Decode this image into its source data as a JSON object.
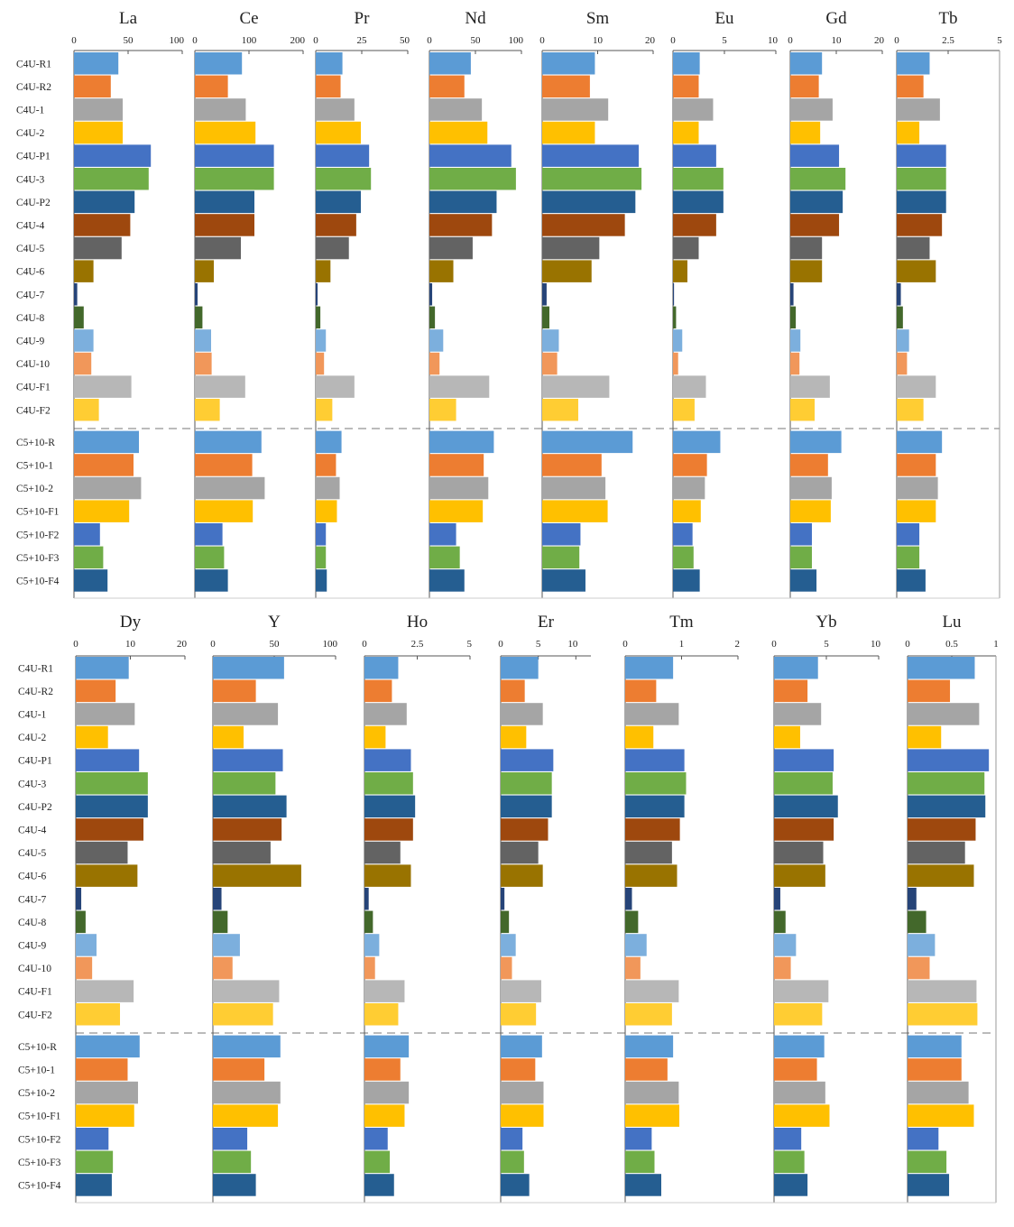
{
  "chart_data": {
    "type": "bar",
    "orientation": "horizontal",
    "categories": [
      "C4U-R1",
      "C4U-R2",
      "C4U-1",
      "C4U-2",
      "C4U-P1",
      "C4U-3",
      "C4U-P2",
      "C4U-4",
      "C4U-5",
      "C4U-6",
      "C4U-7",
      "C4U-8",
      "C4U-9",
      "C4U-10",
      "C4U-F1",
      "C4U-F2",
      "C5+10-R",
      "C5+10-1",
      "C5+10-2",
      "C5+10-F1",
      "C5+10-F2",
      "C5+10-F3",
      "C5+10-F4"
    ],
    "bar_colors": [
      "#5B9BD5",
      "#ED7D31",
      "#A5A5A5",
      "#FFC000",
      "#4472C4",
      "#70AD47",
      "#255E91",
      "#9E480E",
      "#636363",
      "#997300",
      "#264478",
      "#43682B",
      "#7CAFDD",
      "#F1975A",
      "#B7B7B7",
      "#FFCD33",
      "#5B9BD5",
      "#ED7D31",
      "#A5A5A5",
      "#FFC000",
      "#4472C4",
      "#70AD47",
      "#255E91"
    ],
    "group_separator_after": 16,
    "panels": [
      {
        "title": "La",
        "xlim": [
          0,
          100
        ],
        "ticks": [
          0,
          50,
          100
        ],
        "tick_labels": [
          "0",
          "50",
          "100"
        ],
        "values": [
          41,
          34,
          45,
          45,
          71,
          69,
          56,
          52,
          44,
          18,
          3,
          9,
          18,
          16,
          53,
          23,
          60,
          55,
          62,
          51,
          24,
          27,
          31
        ]
      },
      {
        "title": "Ce",
        "xlim": [
          0,
          200
        ],
        "ticks": [
          0,
          100,
          200
        ],
        "tick_labels": [
          "0",
          "100",
          "200"
        ],
        "values": [
          87,
          61,
          94,
          112,
          146,
          146,
          110,
          110,
          85,
          35,
          5,
          14,
          30,
          31,
          93,
          46,
          123,
          106,
          129,
          107,
          51,
          54,
          61
        ]
      },
      {
        "title": "Pr",
        "xlim": [
          0,
          50
        ],
        "ticks": [
          0,
          25,
          50
        ],
        "tick_labels": [
          "0",
          "25",
          "50"
        ],
        "values": [
          14.5,
          13.5,
          21,
          24.5,
          29,
          30,
          24.5,
          22,
          18,
          8,
          1,
          2.5,
          5.5,
          4.5,
          21,
          9,
          14,
          11,
          13,
          11.5,
          5.5,
          5.5,
          6
        ]
      },
      {
        "title": "Nd",
        "xlim": [
          0,
          100
        ],
        "ticks": [
          0,
          50,
          100
        ],
        "tick_labels": [
          "0",
          "50",
          "100"
        ],
        "values": [
          45,
          38,
          57,
          63,
          89,
          94,
          73,
          68,
          47,
          26,
          3,
          6,
          15,
          11,
          65,
          29,
          70,
          59,
          64,
          58,
          29,
          33,
          38
        ]
      },
      {
        "title": "Sm",
        "xlim": [
          0,
          20
        ],
        "ticks": [
          0,
          10,
          20
        ],
        "tick_labels": [
          "0",
          "10",
          "20"
        ],
        "values": [
          9.5,
          8.6,
          11.9,
          9.5,
          17.4,
          17.9,
          16.8,
          14.9,
          10.3,
          8.9,
          0.8,
          1.3,
          3,
          2.7,
          12.1,
          6.5,
          16.3,
          10.7,
          11.4,
          11.8,
          6.9,
          6.7,
          7.8
        ]
      },
      {
        "title": "Eu",
        "xlim": [
          0,
          10
        ],
        "ticks": [
          0,
          5,
          10
        ],
        "tick_labels": [
          "0",
          "5",
          "10"
        ],
        "values": [
          2.6,
          2.5,
          3.9,
          2.5,
          4.2,
          4.9,
          4.9,
          4.2,
          2.5,
          1.4,
          0.1,
          0.3,
          0.9,
          0.5,
          3.2,
          2.1,
          4.6,
          3.3,
          3.1,
          2.7,
          1.9,
          2,
          2.6
        ]
      },
      {
        "title": "Gd",
        "xlim": [
          0,
          20
        ],
        "ticks": [
          0,
          10,
          20
        ],
        "tick_labels": [
          "0",
          "10",
          "20"
        ],
        "values": [
          6.9,
          6.2,
          9.2,
          6.5,
          10.6,
          12,
          11.4,
          10.6,
          6.9,
          6.9,
          0.7,
          1.2,
          2.2,
          2,
          8.6,
          5.3,
          11.1,
          8.2,
          9,
          8.8,
          4.7,
          4.7,
          5.7
        ]
      },
      {
        "title": "Tb",
        "xlim": [
          0,
          5
        ],
        "ticks": [
          0,
          2.5,
          5
        ],
        "tick_labels": [
          "0",
          "2.5",
          "5"
        ],
        "values": [
          1.6,
          1.3,
          2.1,
          1.1,
          2.4,
          2.4,
          2.4,
          2.2,
          1.6,
          1.9,
          0.2,
          0.3,
          0.6,
          0.5,
          1.9,
          1.3,
          2.2,
          1.9,
          2,
          1.9,
          1.1,
          1.1,
          1.4
        ]
      },
      {
        "title": "Dy",
        "xlim": [
          0,
          20
        ],
        "ticks": [
          0,
          10,
          20
        ],
        "tick_labels": [
          "0",
          "10",
          "20"
        ],
        "values": [
          9.7,
          7.3,
          10.8,
          5.9,
          11.6,
          13.2,
          13.2,
          12.4,
          9.5,
          11.3,
          1,
          1.8,
          3.8,
          3,
          10.6,
          8.1,
          11.7,
          9.5,
          11.4,
          10.7,
          6,
          6.8,
          6.6
        ]
      },
      {
        "title": "Y",
        "xlim": [
          0,
          100
        ],
        "ticks": [
          0,
          50,
          100
        ],
        "tick_labels": [
          "0",
          "50",
          "100"
        ],
        "values": [
          58,
          35,
          53,
          25,
          57,
          51,
          60,
          56,
          47,
          72,
          7,
          12,
          22,
          16,
          54,
          49,
          55,
          42,
          55,
          53,
          28,
          31,
          35
        ]
      },
      {
        "title": "Ho",
        "xlim": [
          0,
          5
        ],
        "ticks": [
          0,
          2.5,
          5
        ],
        "tick_labels": [
          "0",
          "2.5",
          "5"
        ],
        "values": [
          1.6,
          1.3,
          2,
          1,
          2.2,
          2.3,
          2.4,
          2.3,
          1.7,
          2.2,
          0.2,
          0.4,
          0.7,
          0.5,
          1.9,
          1.6,
          2.1,
          1.7,
          2.1,
          1.9,
          1.1,
          1.2,
          1.4
        ]
      },
      {
        "title": "Er",
        "xlim": [
          0,
          12
        ],
        "ticks": [
          0,
          5,
          10
        ],
        "tick_labels": [
          "0",
          "5",
          "10"
        ],
        "values": [
          5,
          3.2,
          5.6,
          3.4,
          7,
          6.8,
          6.8,
          6.3,
          5,
          5.6,
          0.5,
          1.1,
          2,
          1.5,
          5.4,
          4.7,
          5.5,
          4.6,
          5.7,
          5.7,
          2.9,
          3.1,
          3.8
        ]
      },
      {
        "title": "Tm",
        "xlim": [
          0,
          2
        ],
        "ticks": [
          0,
          1,
          2
        ],
        "tick_labels": [
          "0",
          "1",
          "2"
        ],
        "values": [
          0.85,
          0.55,
          0.95,
          0.5,
          1.05,
          1.08,
          1.05,
          0.97,
          0.83,
          0.92,
          0.12,
          0.23,
          0.38,
          0.27,
          0.95,
          0.83,
          0.85,
          0.75,
          0.95,
          0.96,
          0.47,
          0.52,
          0.64
        ]
      },
      {
        "title": "Yb",
        "xlim": [
          0,
          10
        ],
        "ticks": [
          0,
          5,
          10
        ],
        "tick_labels": [
          "0",
          "5",
          "10"
        ],
        "values": [
          4.2,
          3.2,
          4.5,
          2.5,
          5.7,
          5.6,
          6.1,
          5.7,
          4.7,
          4.9,
          0.6,
          1.1,
          2.1,
          1.6,
          5.2,
          4.6,
          4.8,
          4.1,
          4.9,
          5.3,
          2.6,
          2.9,
          3.2
        ]
      },
      {
        "title": "Lu",
        "xlim": [
          0,
          1
        ],
        "ticks": [
          0,
          0.5,
          1
        ],
        "tick_labels": [
          "0",
          "0.5",
          "1"
        ],
        "values": [
          0.76,
          0.48,
          0.81,
          0.38,
          0.92,
          0.87,
          0.88,
          0.77,
          0.65,
          0.75,
          0.1,
          0.21,
          0.31,
          0.25,
          0.78,
          0.79,
          0.61,
          0.61,
          0.69,
          0.75,
          0.35,
          0.44,
          0.47
        ]
      }
    ]
  }
}
